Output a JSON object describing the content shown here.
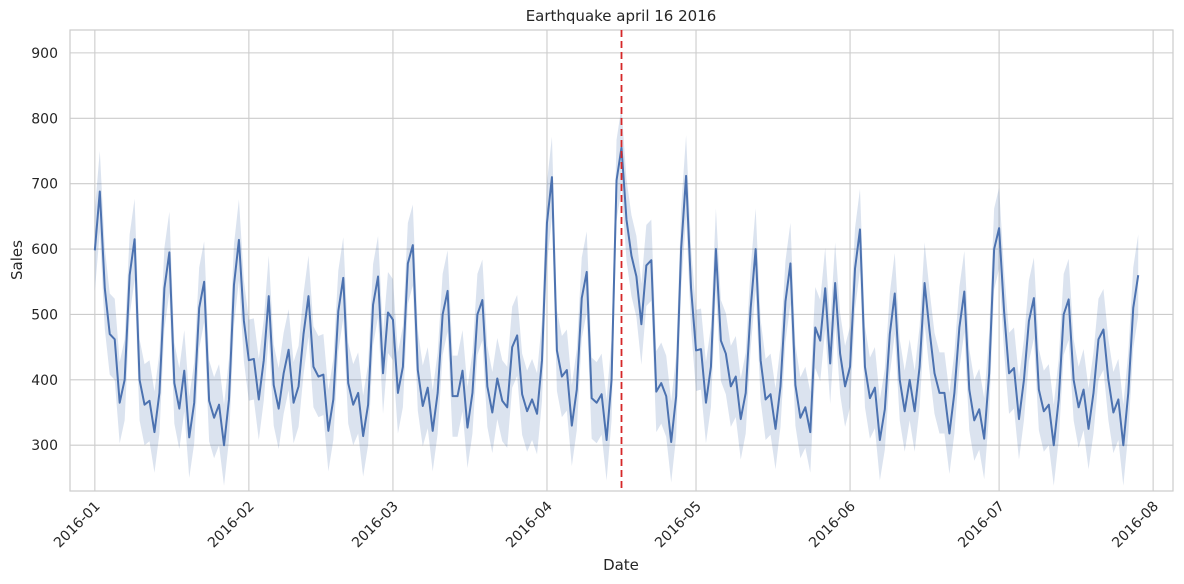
{
  "chart_data": {
    "type": "line",
    "title": "Earthquake april 16 2016",
    "xlabel": "Date",
    "ylabel": "Sales",
    "x_tick_labels": [
      "2016-01",
      "2016-02",
      "2016-03",
      "2016-04",
      "2016-05",
      "2016-06",
      "2016-07",
      "2016-08"
    ],
    "y_tick_labels": [
      "300",
      "400",
      "500",
      "600",
      "700",
      "800",
      "900"
    ],
    "y_ticks": [
      300,
      400,
      500,
      600,
      700,
      800,
      900
    ],
    "ylim": [
      230,
      935
    ],
    "xlim": [
      "2015-12-27",
      "2016-08-05"
    ],
    "grid": true,
    "series": [
      {
        "color": "#4c72b0",
        "x_start": "2016-01-01",
        "values": [
          598,
          688,
          540,
          470,
          462,
          365,
          400,
          560,
          615,
          400,
          362,
          368,
          320,
          380,
          540,
          595,
          395,
          356,
          414,
          312,
          365,
          510,
          550,
          368,
          342,
          362,
          300,
          370,
          545,
          614,
          490,
          430,
          432,
          370,
          430,
          528,
          392,
          356,
          410,
          446,
          365,
          390,
          470,
          528,
          420,
          405,
          408,
          322,
          370,
          505,
          556,
          395,
          362,
          380,
          314,
          362,
          515,
          558,
          410,
          503,
          492,
          380,
          420,
          578,
          606,
          415,
          360,
          388,
          322,
          380,
          500,
          536,
          375,
          375,
          414,
          327,
          380,
          500,
          522,
          390,
          350,
          402,
          368,
          358,
          450,
          468,
          378,
          352,
          370,
          348,
          430,
          640,
          710,
          445,
          405,
          415,
          330,
          385,
          525,
          565,
          372,
          365,
          378,
          308,
          400,
          705,
          755,
          645,
          590,
          558,
          485,
          575,
          583,
          382,
          395,
          375,
          305,
          375,
          600,
          712,
          540,
          445,
          447,
          365,
          420,
          600,
          460,
          440,
          390,
          405,
          340,
          380,
          510,
          600,
          430,
          370,
          378,
          325,
          390,
          520,
          578,
          392,
          342,
          358,
          320,
          480,
          460,
          540,
          425,
          548,
          440,
          390,
          420,
          570,
          630,
          420,
          372,
          388,
          308,
          355,
          470,
          532,
          400,
          352,
          400,
          352,
          420,
          548,
          475,
          410,
          380,
          380,
          318,
          380,
          480,
          535,
          385,
          338,
          355,
          310,
          410,
          600,
          632,
          505,
          410,
          418,
          340,
          400,
          490,
          525,
          385,
          352,
          362,
          300,
          370,
          500,
          523,
          400,
          358,
          385,
          325,
          380,
          462,
          477,
          400,
          350,
          370,
          300,
          380,
          510,
          560
        ]
      }
    ],
    "ci_half_width": 62,
    "annotations": [
      {
        "type": "vertical-line",
        "x": "2016-04-16",
        "color": "#d62728",
        "style": "dashed"
      }
    ]
  }
}
